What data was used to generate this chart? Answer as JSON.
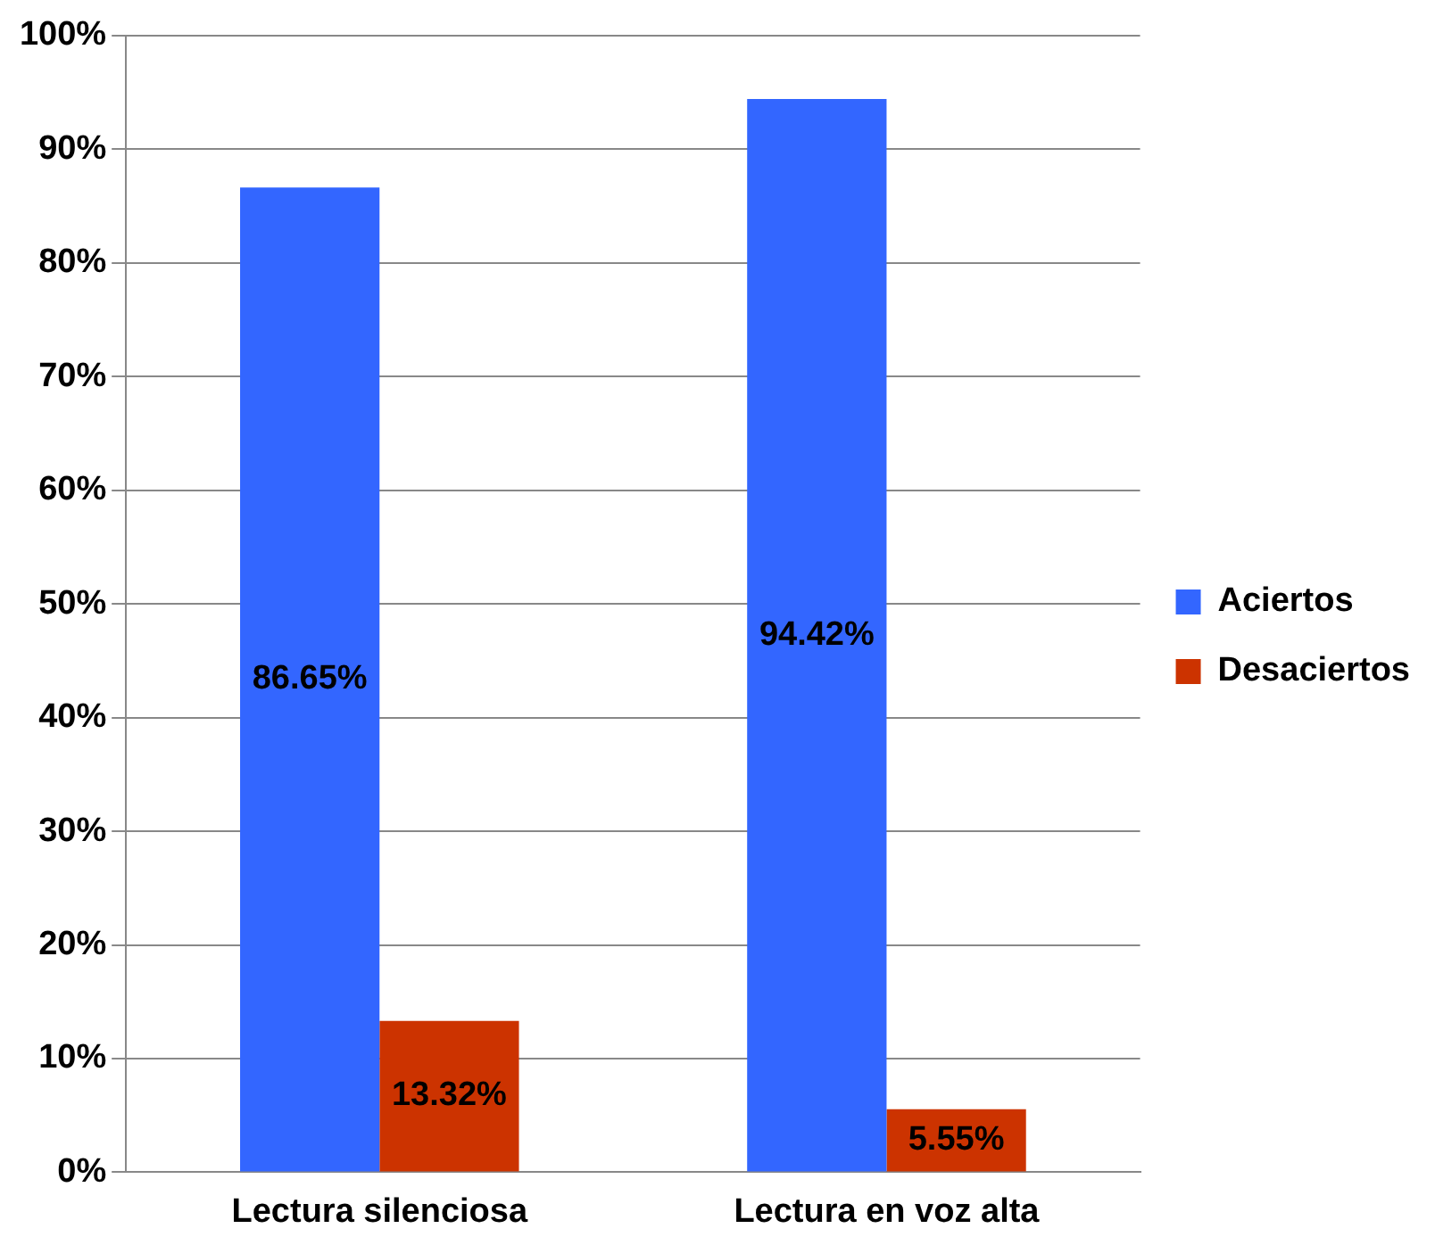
{
  "chart_data": {
    "type": "bar",
    "categories": [
      "Lectura silenciosa",
      "Lectura en voz alta"
    ],
    "series": [
      {
        "name": "Aciertos",
        "color": "#3366ff",
        "values": [
          86.65,
          94.42
        ],
        "value_labels": [
          "86.65%",
          "94.42%"
        ]
      },
      {
        "name": "Desaciertos",
        "color": "#cc3300",
        "values": [
          13.32,
          5.55
        ],
        "value_labels": [
          "13.32%",
          "5.55%"
        ]
      }
    ],
    "ylim": [
      0,
      100
    ],
    "yticks": [
      {
        "value": 0,
        "label": "0%"
      },
      {
        "value": 10,
        "label": "10%"
      },
      {
        "value": 20,
        "label": "20%"
      },
      {
        "value": 30,
        "label": "30%"
      },
      {
        "value": 40,
        "label": "40%"
      },
      {
        "value": 50,
        "label": "50%"
      },
      {
        "value": 60,
        "label": "60%"
      },
      {
        "value": 70,
        "label": "70%"
      },
      {
        "value": 80,
        "label": "80%"
      },
      {
        "value": 90,
        "label": "90%"
      },
      {
        "value": 100,
        "label": "100%"
      }
    ],
    "grid": "y",
    "legend": "right"
  }
}
